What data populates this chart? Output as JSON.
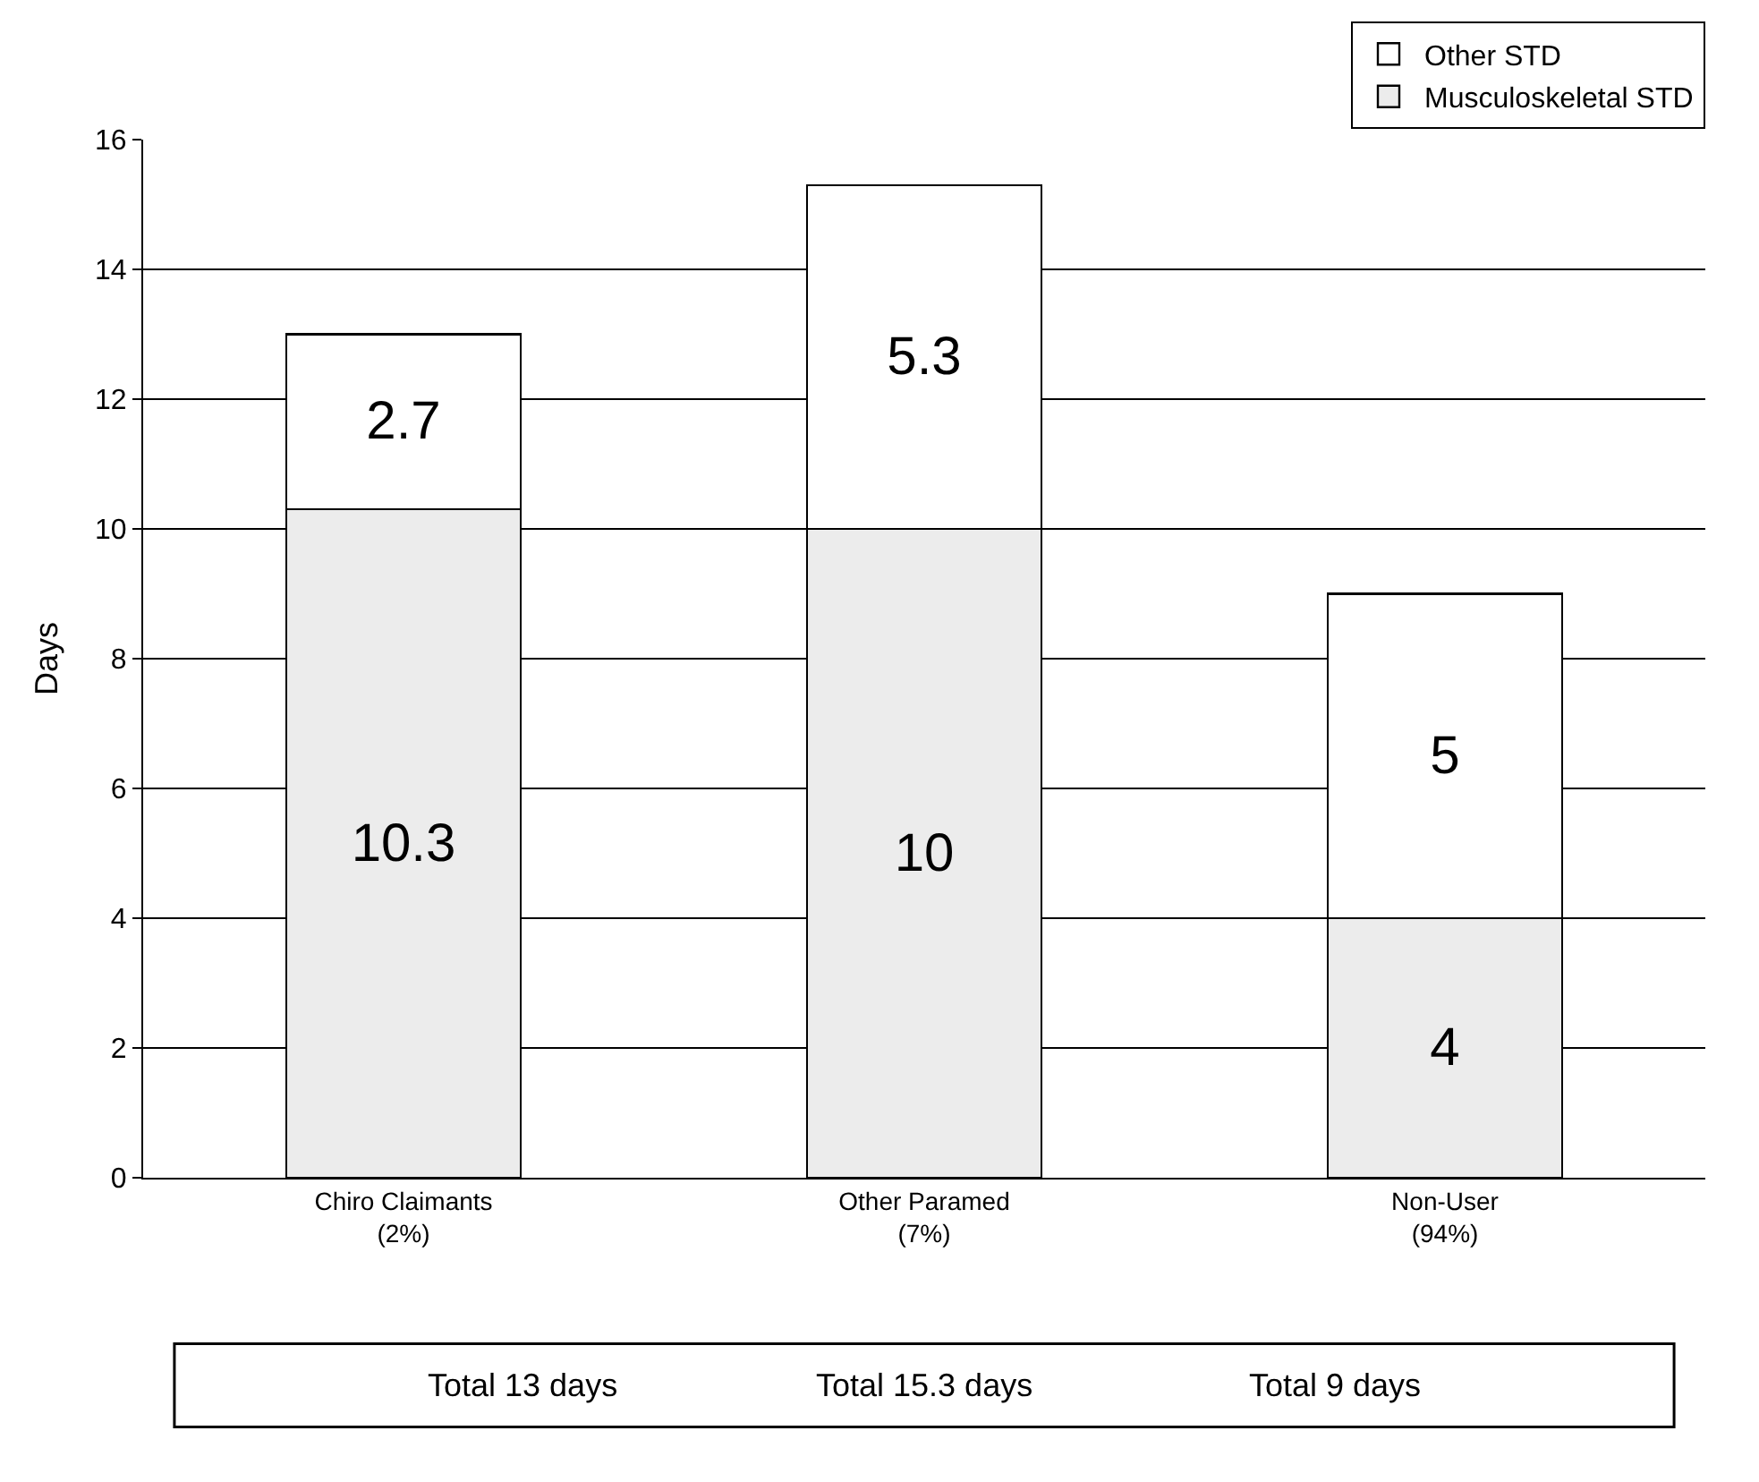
{
  "chart_data": {
    "type": "bar",
    "stacked": true,
    "ylabel": "Days",
    "categories": [
      "Chiro Claimants\n(2%)",
      "Other Paramed\n(7%)",
      "Non-User\n(94%)"
    ],
    "series": [
      {
        "name": "Musculoskeletal STD",
        "color": "#ececec",
        "values": [
          10.3,
          10,
          4
        ]
      },
      {
        "name": "Other STD",
        "color": "#ffffff",
        "values": [
          2.7,
          5.3,
          5
        ]
      }
    ],
    "ylim": [
      0,
      16
    ],
    "yticks": [
      0,
      2,
      4,
      6,
      8,
      10,
      12,
      14,
      16
    ],
    "grid": "y",
    "legend": "top right",
    "data_labels": true,
    "annotations": [
      "Total 13 days",
      "Total 15.3 days",
      "Total 9 days"
    ]
  }
}
